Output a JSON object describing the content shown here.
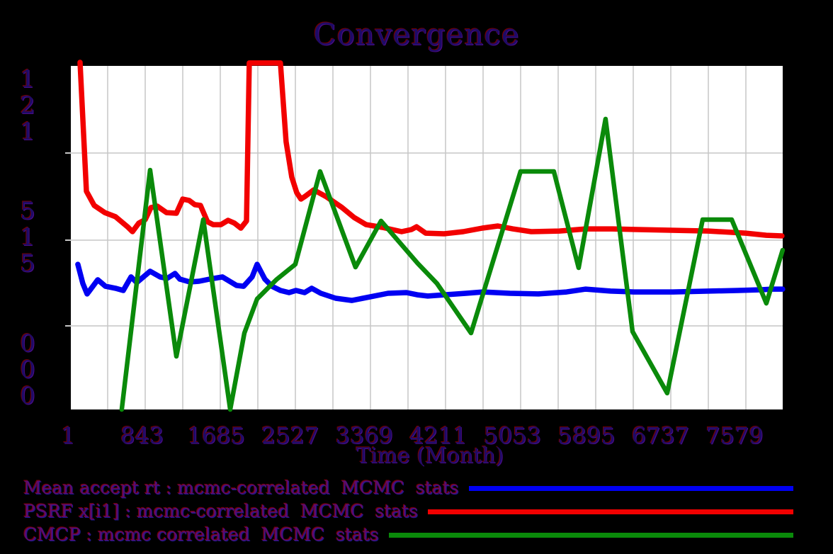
{
  "title": "Convergence",
  "x_axis": {
    "label": "Time (Month)",
    "tick_labels": [
      "1",
      "843",
      "1685",
      "2527",
      "3369",
      "4211",
      "5053",
      "5895",
      "6737",
      "7579"
    ]
  },
  "y_axis": {
    "tick_labels": [
      "121",
      "515",
      "000"
    ],
    "tick_values": [
      1.21,
      0.515,
      0.0
    ]
  },
  "legend": {
    "items": [
      {
        "label": "Mean accept rt : mcmc-correlated  MCMC  stats",
        "color": "#0000f2"
      },
      {
        "label": "PSRF x[i1] : mcmc-correlated  MCMC  stats",
        "color": "#f20000"
      },
      {
        "label": "CMCP : mcmc correlated  MCMC  stats",
        "color": "#0a8a0a"
      }
    ]
  },
  "colors": {
    "background": "#000000",
    "plot_background": "#ffffff",
    "gridline": "#c6c6c6",
    "series_blue": "#0000f2",
    "series_red": "#f20000",
    "series_green": "#0a8a0a"
  },
  "chart_data": {
    "type": "line",
    "title": "Convergence",
    "xlabel": "Time (Month)",
    "ylabel": "",
    "x_ticks": [
      1,
      843,
      1685,
      2527,
      3369,
      4211,
      5053,
      5895,
      6737,
      7579
    ],
    "y_ticks": [
      1.21,
      0.515,
      0.0
    ],
    "xlim": [
      1,
      8090
    ],
    "grid": "on",
    "legend_position": "below",
    "series": [
      {
        "name": "Mean accept rt : mcmc-correlated  MCMC  stats",
        "color": "#0000f2",
        "points": [
          [
            81,
            0.37
          ],
          [
            137,
            0.255
          ],
          [
            186,
            0.192
          ],
          [
            307,
            0.277
          ],
          [
            395,
            0.238
          ],
          [
            508,
            0.226
          ],
          [
            597,
            0.213
          ],
          [
            685,
            0.294
          ],
          [
            750,
            0.26
          ],
          [
            902,
            0.328
          ],
          [
            1015,
            0.294
          ],
          [
            1095,
            0.285
          ],
          [
            1184,
            0.315
          ],
          [
            1240,
            0.281
          ],
          [
            1353,
            0.264
          ],
          [
            1458,
            0.268
          ],
          [
            1578,
            0.281
          ],
          [
            1723,
            0.294
          ],
          [
            1884,
            0.243
          ],
          [
            1964,
            0.238
          ],
          [
            2061,
            0.294
          ],
          [
            2118,
            0.37
          ],
          [
            2206,
            0.281
          ],
          [
            2287,
            0.238
          ],
          [
            2383,
            0.213
          ],
          [
            2480,
            0.2
          ],
          [
            2560,
            0.213
          ],
          [
            2657,
            0.2
          ],
          [
            2738,
            0.226
          ],
          [
            2842,
            0.196
          ],
          [
            3011,
            0.166
          ],
          [
            3196,
            0.153
          ],
          [
            3405,
            0.175
          ],
          [
            3606,
            0.196
          ],
          [
            3816,
            0.2
          ],
          [
            3937,
            0.187
          ],
          [
            4057,
            0.179
          ],
          [
            4251,
            0.187
          ],
          [
            4492,
            0.196
          ],
          [
            4685,
            0.204
          ],
          [
            4991,
            0.196
          ],
          [
            5313,
            0.192
          ],
          [
            5635,
            0.204
          ],
          [
            5852,
            0.221
          ],
          [
            6134,
            0.209
          ],
          [
            6400,
            0.204
          ],
          [
            6842,
            0.204
          ],
          [
            7261,
            0.209
          ],
          [
            7583,
            0.213
          ],
          [
            7848,
            0.217
          ],
          [
            7970,
            0.221
          ],
          [
            8090,
            0.221
          ]
        ]
      },
      {
        "name": "PSRF x[i1] : mcmc-correlated  MCMC  stats",
        "color": "#f20000",
        "points": [
          [
            106,
            1.933
          ],
          [
            178,
            0.905
          ],
          [
            267,
            0.792
          ],
          [
            387,
            0.735
          ],
          [
            508,
            0.702
          ],
          [
            645,
            0.622
          ],
          [
            701,
            0.583
          ],
          [
            774,
            0.651
          ],
          [
            846,
            0.679
          ],
          [
            911,
            0.775
          ],
          [
            983,
            0.786
          ],
          [
            1088,
            0.735
          ],
          [
            1200,
            0.73
          ],
          [
            1273,
            0.843
          ],
          [
            1345,
            0.832
          ],
          [
            1410,
            0.798
          ],
          [
            1474,
            0.792
          ],
          [
            1554,
            0.662
          ],
          [
            1619,
            0.639
          ],
          [
            1707,
            0.639
          ],
          [
            1788,
            0.673
          ],
          [
            1860,
            0.651
          ],
          [
            1933,
            0.611
          ],
          [
            1997,
            0.668
          ],
          [
            2029,
            1.928
          ],
          [
            2383,
            1.928
          ],
          [
            2447,
            1.3
          ],
          [
            2512,
            1.018
          ],
          [
            2568,
            0.894
          ],
          [
            2616,
            0.843
          ],
          [
            2664,
            0.865
          ],
          [
            2761,
            0.916
          ],
          [
            2906,
            0.86
          ],
          [
            3083,
            0.775
          ],
          [
            3220,
            0.696
          ],
          [
            3357,
            0.639
          ],
          [
            3542,
            0.617
          ],
          [
            3760,
            0.583
          ],
          [
            3872,
            0.6
          ],
          [
            3929,
            0.622
          ],
          [
            4033,
            0.571
          ],
          [
            4243,
            0.566
          ],
          [
            4460,
            0.583
          ],
          [
            4677,
            0.611
          ],
          [
            4854,
            0.628
          ],
          [
            5023,
            0.605
          ],
          [
            5233,
            0.583
          ],
          [
            5554,
            0.588
          ],
          [
            5852,
            0.605
          ],
          [
            6158,
            0.605
          ],
          [
            6440,
            0.6
          ],
          [
            6818,
            0.594
          ],
          [
            7245,
            0.588
          ],
          [
            7671,
            0.571
          ],
          [
            7905,
            0.554
          ],
          [
            8082,
            0.549
          ]
        ]
      },
      {
        "name": "CMCP : mcmc correlated  MCMC  stats",
        "color": "#0a8a0a",
        "points": [
          [
            580,
            -0.502
          ],
          [
            902,
            1.074
          ],
          [
            1200,
            -0.183
          ],
          [
            1506,
            0.679
          ],
          [
            1812,
            -0.502
          ],
          [
            1973,
            -0.043
          ],
          [
            2118,
            0.162
          ],
          [
            2335,
            0.277
          ],
          [
            2552,
            0.37
          ],
          [
            2834,
            1.063
          ],
          [
            3236,
            0.353
          ],
          [
            3526,
            0.668
          ],
          [
            3944,
            0.375
          ],
          [
            4162,
            0.255
          ],
          [
            4549,
            -0.043
          ],
          [
            5112,
            1.063
          ],
          [
            5490,
            1.063
          ],
          [
            5772,
            0.349
          ],
          [
            6078,
            1.481
          ],
          [
            6384,
            -0.034
          ],
          [
            6778,
            -0.404
          ],
          [
            7181,
            0.679
          ],
          [
            7511,
            0.679
          ],
          [
            7905,
            0.136
          ],
          [
            8090,
            0.455
          ]
        ]
      }
    ]
  }
}
